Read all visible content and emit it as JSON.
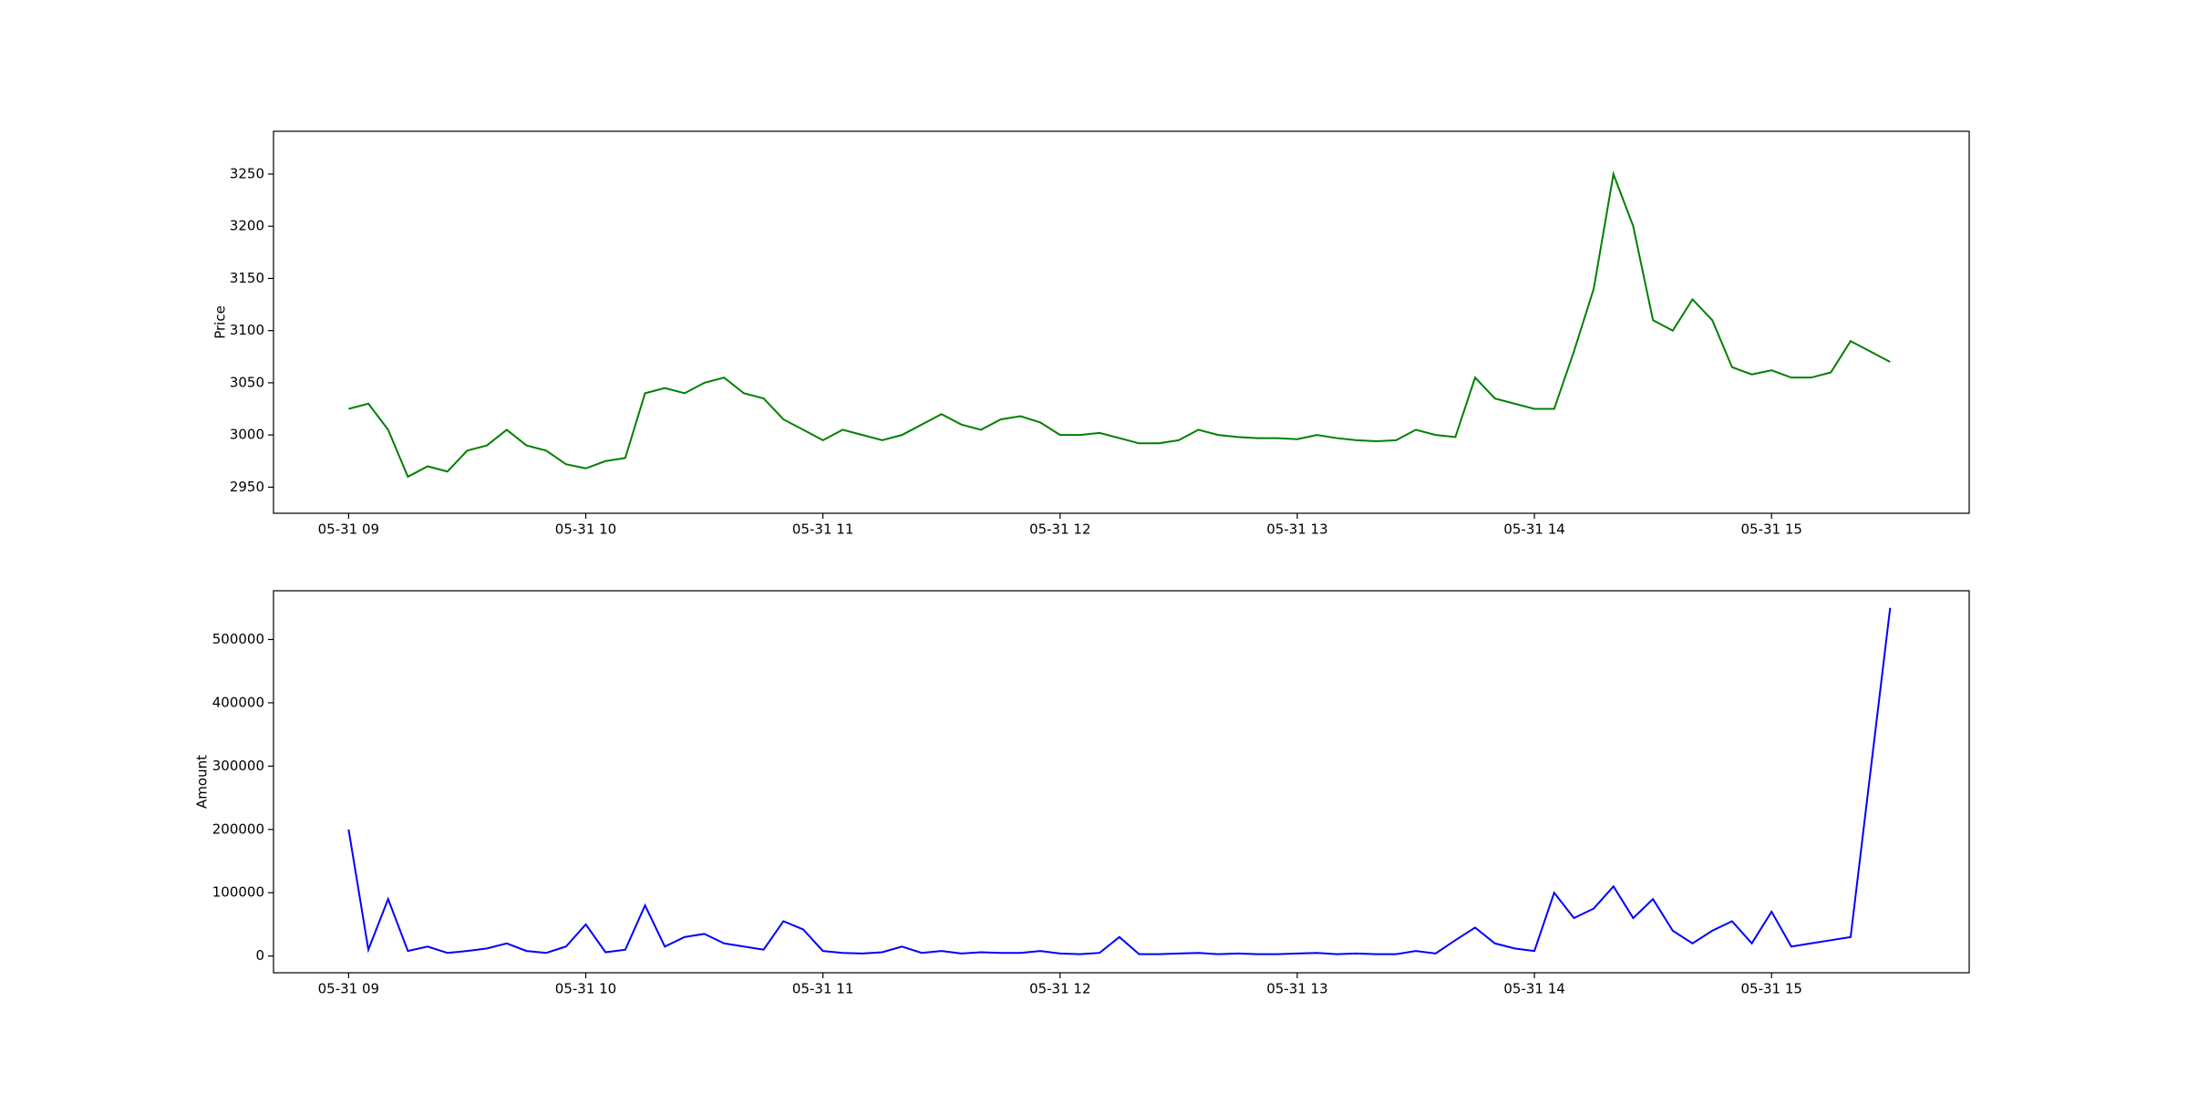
{
  "chart_data": [
    {
      "type": "line",
      "ylabel": "Price",
      "color": "#008000",
      "x": [
        "05-31 09:00",
        "05-31 09:05",
        "05-31 09:10",
        "05-31 09:15",
        "05-31 09:20",
        "05-31 09:25",
        "05-31 09:30",
        "05-31 09:35",
        "05-31 09:40",
        "05-31 09:45",
        "05-31 09:50",
        "05-31 09:55",
        "05-31 10:00",
        "05-31 10:05",
        "05-31 10:10",
        "05-31 10:15",
        "05-31 10:20",
        "05-31 10:25",
        "05-31 10:30",
        "05-31 10:35",
        "05-31 10:40",
        "05-31 10:45",
        "05-31 10:50",
        "05-31 10:55",
        "05-31 11:00",
        "05-31 11:05",
        "05-31 11:10",
        "05-31 11:15",
        "05-31 11:20",
        "05-31 11:25",
        "05-31 11:30",
        "05-31 11:35",
        "05-31 11:40",
        "05-31 11:45",
        "05-31 11:50",
        "05-31 11:55",
        "05-31 12:00",
        "05-31 12:05",
        "05-31 12:10",
        "05-31 12:15",
        "05-31 12:20",
        "05-31 12:25",
        "05-31 12:30",
        "05-31 12:35",
        "05-31 12:40",
        "05-31 12:45",
        "05-31 12:50",
        "05-31 12:55",
        "05-31 13:00",
        "05-31 13:05",
        "05-31 13:10",
        "05-31 13:15",
        "05-31 13:20",
        "05-31 13:25",
        "05-31 13:30",
        "05-31 13:35",
        "05-31 13:40",
        "05-31 13:45",
        "05-31 13:50",
        "05-31 13:55",
        "05-31 14:00",
        "05-31 14:05",
        "05-31 14:10",
        "05-31 14:15",
        "05-31 14:20",
        "05-31 14:25",
        "05-31 14:30",
        "05-31 14:35",
        "05-31 14:40",
        "05-31 14:45",
        "05-31 14:50",
        "05-31 14:55",
        "05-31 15:00",
        "05-31 15:05",
        "05-31 15:10",
        "05-31 15:15",
        "05-31 15:20",
        "05-31 15:30"
      ],
      "values": [
        3025,
        3030,
        3005,
        2960,
        2970,
        2965,
        2985,
        2990,
        3005,
        2990,
        2985,
        2972,
        2968,
        2975,
        2978,
        3040,
        3045,
        3040,
        3050,
        3055,
        3040,
        3035,
        3015,
        3005,
        2995,
        3005,
        3000,
        2995,
        3000,
        3010,
        3020,
        3010,
        3005,
        3015,
        3018,
        3012,
        3000,
        3000,
        3002,
        2997,
        2992,
        2992,
        2995,
        3005,
        3000,
        2998,
        2997,
        2997,
        2996,
        3000,
        2997,
        2995,
        2994,
        2995,
        3005,
        3000,
        2998,
        3055,
        3035,
        3030,
        3025,
        3025,
        3080,
        3140,
        3250,
        3200,
        3110,
        3100,
        3130,
        3110,
        3065,
        3058,
        3062,
        3055,
        3055,
        3060,
        3090,
        3070
      ],
      "xlim": [
        "05-31 08:41",
        "05-31 15:50"
      ],
      "xticks": [
        "05-31 09",
        "05-31 10",
        "05-31 11",
        "05-31 12",
        "05-31 13",
        "05-31 14",
        "05-31 15"
      ],
      "ylim": [
        2925,
        3291
      ],
      "yticks": [
        2950,
        3000,
        3050,
        3100,
        3150,
        3200,
        3250
      ]
    },
    {
      "type": "line",
      "ylabel": "Amount",
      "color": "#0000ff",
      "x": [
        "05-31 09:00",
        "05-31 09:05",
        "05-31 09:10",
        "05-31 09:15",
        "05-31 09:20",
        "05-31 09:25",
        "05-31 09:30",
        "05-31 09:35",
        "05-31 09:40",
        "05-31 09:45",
        "05-31 09:50",
        "05-31 09:55",
        "05-31 10:00",
        "05-31 10:05",
        "05-31 10:10",
        "05-31 10:15",
        "05-31 10:20",
        "05-31 10:25",
        "05-31 10:30",
        "05-31 10:35",
        "05-31 10:40",
        "05-31 10:45",
        "05-31 10:50",
        "05-31 10:55",
        "05-31 11:00",
        "05-31 11:05",
        "05-31 11:10",
        "05-31 11:15",
        "05-31 11:20",
        "05-31 11:25",
        "05-31 11:30",
        "05-31 11:35",
        "05-31 11:40",
        "05-31 11:45",
        "05-31 11:50",
        "05-31 11:55",
        "05-31 12:00",
        "05-31 12:05",
        "05-31 12:10",
        "05-31 12:15",
        "05-31 12:20",
        "05-31 12:25",
        "05-31 12:30",
        "05-31 12:35",
        "05-31 12:40",
        "05-31 12:45",
        "05-31 12:50",
        "05-31 12:55",
        "05-31 13:00",
        "05-31 13:05",
        "05-31 13:10",
        "05-31 13:15",
        "05-31 13:20",
        "05-31 13:25",
        "05-31 13:30",
        "05-31 13:35",
        "05-31 13:40",
        "05-31 13:45",
        "05-31 13:50",
        "05-31 13:55",
        "05-31 14:00",
        "05-31 14:05",
        "05-31 14:10",
        "05-31 14:15",
        "05-31 14:20",
        "05-31 14:25",
        "05-31 14:30",
        "05-31 14:35",
        "05-31 14:40",
        "05-31 14:45",
        "05-31 14:50",
        "05-31 14:55",
        "05-31 15:00",
        "05-31 15:05",
        "05-31 15:10",
        "05-31 15:15",
        "05-31 15:20",
        "05-31 15:30"
      ],
      "values": [
        200000,
        10000,
        90000,
        8000,
        15000,
        5000,
        8000,
        12000,
        20000,
        8000,
        5000,
        15000,
        50000,
        6000,
        10000,
        80000,
        15000,
        30000,
        35000,
        20000,
        15000,
        10000,
        55000,
        42000,
        8000,
        5000,
        4000,
        6000,
        15000,
        5000,
        8000,
        4000,
        6000,
        5000,
        5000,
        8000,
        4000,
        3000,
        5000,
        30000,
        3000,
        3000,
        4000,
        5000,
        3000,
        4000,
        3000,
        3000,
        4000,
        5000,
        3000,
        4000,
        3000,
        3000,
        8000,
        4000,
        25000,
        45000,
        20000,
        12000,
        8000,
        100000,
        60000,
        75000,
        110000,
        60000,
        90000,
        40000,
        20000,
        40000,
        55000,
        20000,
        70000,
        15000,
        20000,
        25000,
        30000,
        550000
      ],
      "xlim": [
        "05-31 08:41",
        "05-31 15:50"
      ],
      "xticks": [
        "05-31 09",
        "05-31 10",
        "05-31 11",
        "05-31 12",
        "05-31 13",
        "05-31 14",
        "05-31 15"
      ],
      "ylim": [
        -26400,
        577000
      ],
      "yticks": [
        0,
        100000,
        200000,
        300000,
        400000,
        500000
      ]
    }
  ]
}
